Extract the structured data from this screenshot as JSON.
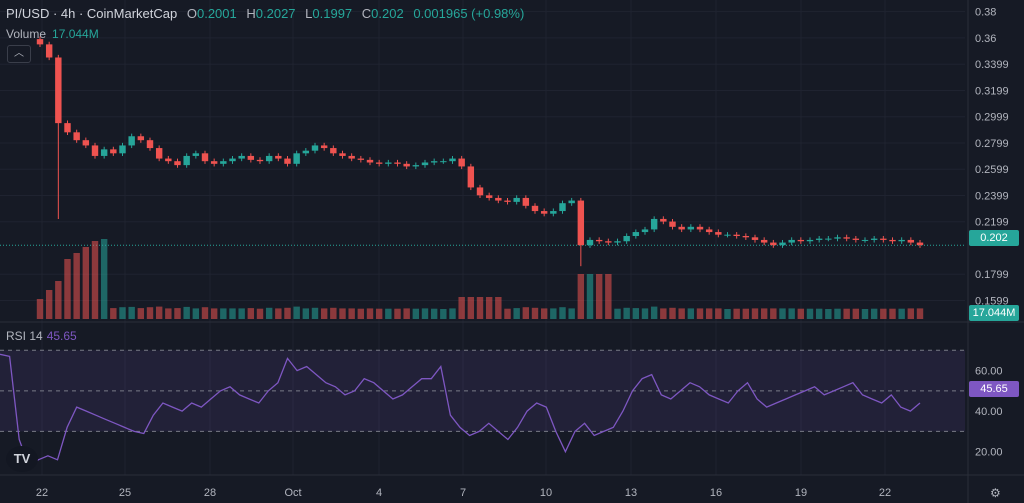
{
  "legend": {
    "symbol": "PI/USD · 4h · CoinMarketCap",
    "open_label": "O",
    "open": "0.2001",
    "high_label": "H",
    "high": "0.2027",
    "low_label": "L",
    "low": "0.1997",
    "close_label": "C",
    "close": "0.202",
    "change": "0.001965 (+0.98%)"
  },
  "volume_legend": {
    "label": "Volume",
    "value": "17.044M"
  },
  "rsi_legend": {
    "label": "RSI 14",
    "value": "45.65"
  },
  "tags": {
    "price": "0.202",
    "volume": "17.044M",
    "rsi": "45.65"
  },
  "colors": {
    "up": "#26a69a",
    "down": "#ef5350",
    "rsi_line": "#7e57c2"
  },
  "icons": {
    "logo": "tradingview-logo",
    "settings": "gear-icon",
    "collapse": "chevron-up-icon"
  },
  "chart_data": [
    {
      "type": "candlestick",
      "price_axis_ticks": [
        "0.38",
        "0.36",
        "0.3399",
        "0.3199",
        "0.2999",
        "0.2799",
        "0.2599",
        "0.2399",
        "0.2199",
        "0.1799",
        "0.1599"
      ],
      "x_tick_labels": [
        "22",
        "25",
        "28",
        "Oct",
        "4",
        "7",
        "10",
        "13",
        "16",
        "19",
        "22"
      ],
      "ylim": [
        0.145,
        0.385
      ],
      "close_series": [
        0.355,
        0.345,
        0.295,
        0.288,
        0.282,
        0.278,
        0.27,
        0.275,
        0.272,
        0.278,
        0.285,
        0.282,
        0.276,
        0.268,
        0.266,
        0.263,
        0.27,
        0.272,
        0.266,
        0.264,
        0.266,
        0.268,
        0.27,
        0.267,
        0.266,
        0.27,
        0.268,
        0.264,
        0.272,
        0.274,
        0.278,
        0.276,
        0.272,
        0.27,
        0.268,
        0.267,
        0.265,
        0.264,
        0.265,
        0.264,
        0.262,
        0.263,
        0.265,
        0.266,
        0.266,
        0.268,
        0.262,
        0.246,
        0.24,
        0.238,
        0.236,
        0.235,
        0.238,
        0.232,
        0.228,
        0.226,
        0.228,
        0.234,
        0.236,
        0.202,
        0.206,
        0.205,
        0.204,
        0.205,
        0.209,
        0.212,
        0.214,
        0.222,
        0.22,
        0.216,
        0.214,
        0.216,
        0.214,
        0.212,
        0.21,
        0.21,
        0.209,
        0.208,
        0.206,
        0.204,
        0.202,
        0.204,
        0.206,
        0.205,
        0.206,
        0.207,
        0.207,
        0.208,
        0.207,
        0.206,
        0.206,
        0.207,
        0.206,
        0.205,
        0.206,
        0.204,
        0.202
      ],
      "volume_note": "volume shown as relative bar heights in the lower band"
    },
    {
      "type": "line",
      "name": "RSI 14",
      "y_ticks": [
        "60.00",
        "40.00",
        "20.00"
      ],
      "ylim": [
        10,
        80
      ],
      "bands": [
        30,
        70
      ],
      "values": [
        68,
        67,
        26,
        13,
        16,
        18,
        16,
        32,
        42,
        40,
        38,
        36,
        34,
        32,
        30,
        29,
        38,
        44,
        42,
        40,
        44,
        42,
        46,
        50,
        52,
        48,
        46,
        44,
        50,
        54,
        66,
        60,
        62,
        58,
        54,
        52,
        48,
        50,
        56,
        54,
        50,
        46,
        48,
        52,
        56,
        56,
        62,
        38,
        32,
        28,
        30,
        34,
        30,
        26,
        32,
        40,
        44,
        42,
        30,
        20,
        30,
        34,
        28,
        30,
        32,
        40,
        50,
        56,
        58,
        48,
        46,
        50,
        54,
        52,
        48,
        46,
        44,
        50,
        54,
        46,
        42,
        44,
        46,
        48,
        50,
        52,
        48,
        50,
        52,
        54,
        48,
        46,
        44,
        48,
        42,
        40,
        44
      ]
    }
  ]
}
